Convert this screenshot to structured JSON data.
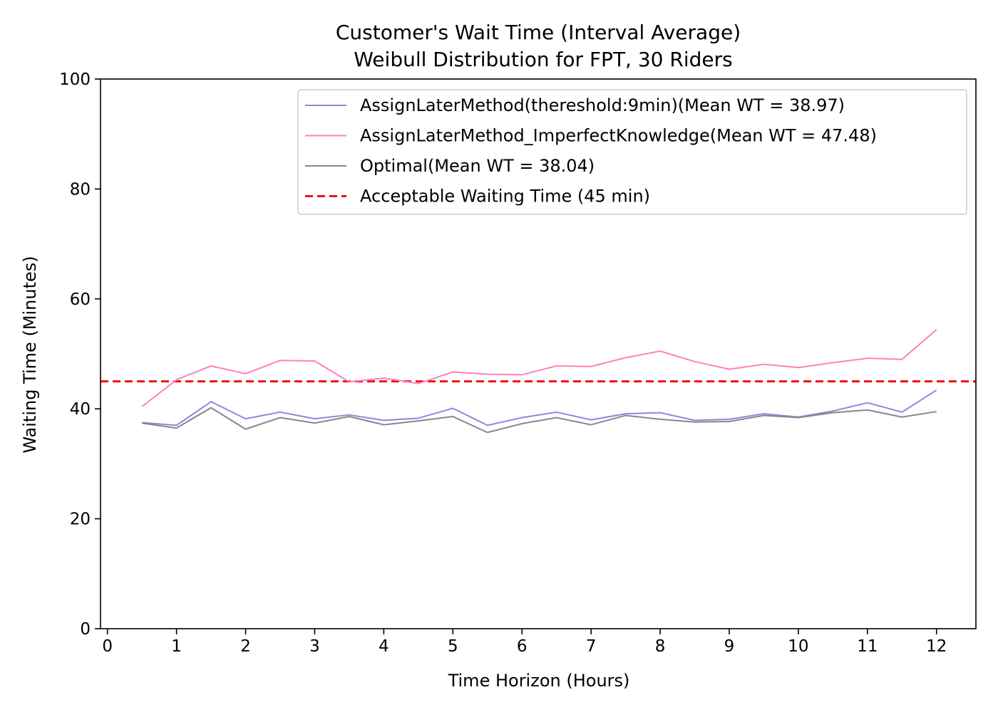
{
  "chart_data": {
    "type": "line",
    "title_line1": "Customer's Wait Time (Interval Average)",
    "title_line2": "Weibull Distribution for FPT, 30 Riders",
    "xlabel": "Time Horizon (Hours)",
    "ylabel": "Waiting Time (Minutes)",
    "xlim": [
      -0.1,
      12.57
    ],
    "ylim": [
      0,
      100
    ],
    "xticks": [
      0,
      1,
      2,
      3,
      4,
      5,
      6,
      7,
      8,
      9,
      10,
      11,
      12
    ],
    "yticks": [
      0,
      20,
      40,
      60,
      80,
      100
    ],
    "grid": false,
    "legend_position": "top-right",
    "x": [
      0.5,
      1,
      1.5,
      2,
      2.5,
      3,
      3.5,
      4,
      4.5,
      5,
      5.5,
      6,
      6.5,
      7,
      7.5,
      8,
      8.5,
      9,
      9.5,
      10,
      10.5,
      11,
      11.5,
      12
    ],
    "series": [
      {
        "name": "AssignLaterMethod(thereshold:9min)(Mean WT = 38.97)",
        "color": "#9d7fe0",
        "style": "solid",
        "values": [
          37.5,
          37.0,
          41.3,
          38.2,
          39.4,
          38.2,
          38.9,
          37.9,
          38.3,
          40.1,
          37.0,
          38.4,
          39.4,
          38.0,
          39.1,
          39.3,
          37.9,
          38.1,
          39.1,
          38.5,
          39.6,
          41.1,
          39.4,
          43.4
        ]
      },
      {
        "name": "AssignLaterMethod_ImperfectKnowledge(Mean WT = 47.48)",
        "color": "#ff7fbf",
        "style": "solid",
        "values": [
          40.4,
          45.3,
          47.8,
          46.4,
          48.8,
          48.7,
          44.9,
          45.6,
          44.6,
          46.7,
          46.3,
          46.2,
          47.8,
          47.7,
          49.3,
          50.5,
          48.6,
          47.2,
          48.1,
          47.5,
          48.4,
          49.2,
          49.0,
          54.4
        ]
      },
      {
        "name": "Optimal(Mean WT = 38.04)",
        "color": "#888888",
        "style": "solid",
        "values": [
          37.4,
          36.5,
          40.2,
          36.3,
          38.4,
          37.4,
          38.6,
          37.1,
          37.8,
          38.6,
          35.7,
          37.3,
          38.4,
          37.1,
          38.8,
          38.1,
          37.6,
          37.7,
          38.8,
          38.4,
          39.3,
          39.8,
          38.5,
          39.5
        ]
      }
    ],
    "reference_line": {
      "name": "Acceptable Waiting Time (45 min)",
      "y": 45,
      "color": "#ee1111",
      "style": "dashed"
    }
  }
}
